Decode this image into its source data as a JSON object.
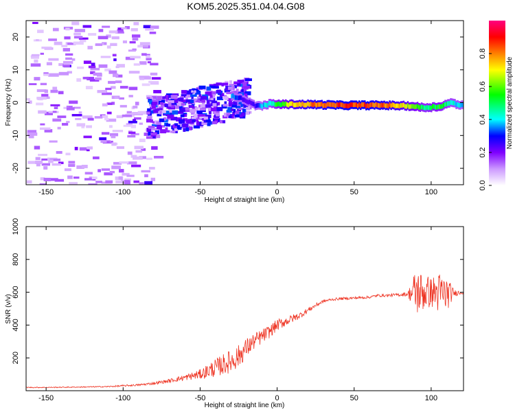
{
  "figure": {
    "title": "KOM5.2025.351.04.04.G08"
  },
  "chart_data": [
    {
      "type": "heatmap",
      "xlabel": "Height of straight line (km)",
      "ylabel": "Frequency (Hz)",
      "xlim": [
        -163,
        121
      ],
      "ylim": [
        -25,
        25
      ],
      "x_ticks": [
        -150,
        -100,
        -50,
        0,
        50,
        100
      ],
      "y_ticks": [
        -20,
        -10,
        0,
        10,
        20
      ],
      "colorbar": {
        "label": "Normalized spectral amplitude",
        "range": [
          0.0,
          1.0
        ],
        "ticks": [
          0.0,
          0.2,
          0.4,
          0.6,
          0.8
        ],
        "colormap": [
          "#ffffff",
          "#cc99ff",
          "#7f00ff",
          "#0000ff",
          "#00ffff",
          "#00ff00",
          "#ffff00",
          "#ff8000",
          "#ff0000",
          "#ff0080"
        ]
      },
      "features": {
        "main_line": {
          "points": [
            [
              -30,
              2.0
            ],
            [
              -25,
              1.5
            ],
            [
              -20,
              0.5
            ],
            [
              -15,
              -0.8
            ],
            [
              -10,
              -1.0
            ],
            [
              -5,
              -0.3
            ],
            [
              0,
              -0.5
            ],
            [
              10,
              -0.5
            ],
            [
              25,
              -0.6
            ],
            [
              40,
              -0.8
            ],
            [
              55,
              -0.8
            ],
            [
              70,
              -0.8
            ],
            [
              85,
              -1.0
            ],
            [
              95,
              -1.5
            ],
            [
              105,
              -1.2
            ],
            [
              112,
              0.0
            ],
            [
              121,
              -1.0
            ]
          ],
          "amplitude": [
            0.45,
            0.35,
            0.25,
            0.3,
            0.45,
            0.5,
            0.6,
            0.75,
            0.85,
            0.9,
            0.92,
            0.85,
            0.7,
            0.55,
            0.6,
            0.5,
            0.45
          ]
        },
        "scatter_region": {
          "x_range": [
            -85,
            -20
          ],
          "y_range": [
            -13,
            9
          ],
          "amplitude": 0.3
        },
        "noise_region": {
          "x_range": [
            -163,
            -80
          ],
          "y_range": [
            -25,
            25
          ],
          "amplitude": 0.12
        }
      }
    },
    {
      "type": "line",
      "xlabel": "Height of straight line (km)",
      "ylabel": "SNR (v/v)",
      "xlim": [
        -163,
        121
      ],
      "ylim": [
        0,
        1000
      ],
      "x_ticks": [
        -150,
        -100,
        -50,
        0,
        50,
        100
      ],
      "y_ticks": [
        200,
        400,
        600,
        800,
        1000
      ],
      "color": "#ee3322",
      "series": [
        {
          "x": [
            -163,
            -150,
            -130,
            -110,
            -100,
            -90,
            -80,
            -70,
            -60,
            -50,
            -45,
            -40,
            -35,
            -30,
            -25,
            -20,
            -15,
            -10,
            -5,
            0,
            5,
            10,
            15,
            20,
            25,
            30,
            35,
            40,
            50,
            60,
            65,
            70,
            80,
            85,
            90,
            95,
            100,
            105,
            110,
            115,
            121
          ],
          "values": [
            20,
            20,
            22,
            25,
            30,
            35,
            45,
            60,
            80,
            100,
            120,
            140,
            160,
            180,
            210,
            260,
            300,
            330,
            360,
            400,
            420,
            440,
            460,
            490,
            520,
            545,
            555,
            560,
            565,
            570,
            580,
            580,
            585,
            590,
            600,
            600,
            600,
            595,
            590,
            595,
            600
          ],
          "noise": [
            3,
            3,
            3,
            4,
            5,
            6,
            8,
            12,
            18,
            30,
            45,
            55,
            65,
            70,
            70,
            60,
            50,
            45,
            40,
            35,
            30,
            25,
            20,
            15,
            12,
            10,
            8,
            8,
            8,
            8,
            8,
            8,
            10,
            15,
            150,
            120,
            90,
            130,
            110,
            20,
            10
          ]
        }
      ]
    }
  ]
}
